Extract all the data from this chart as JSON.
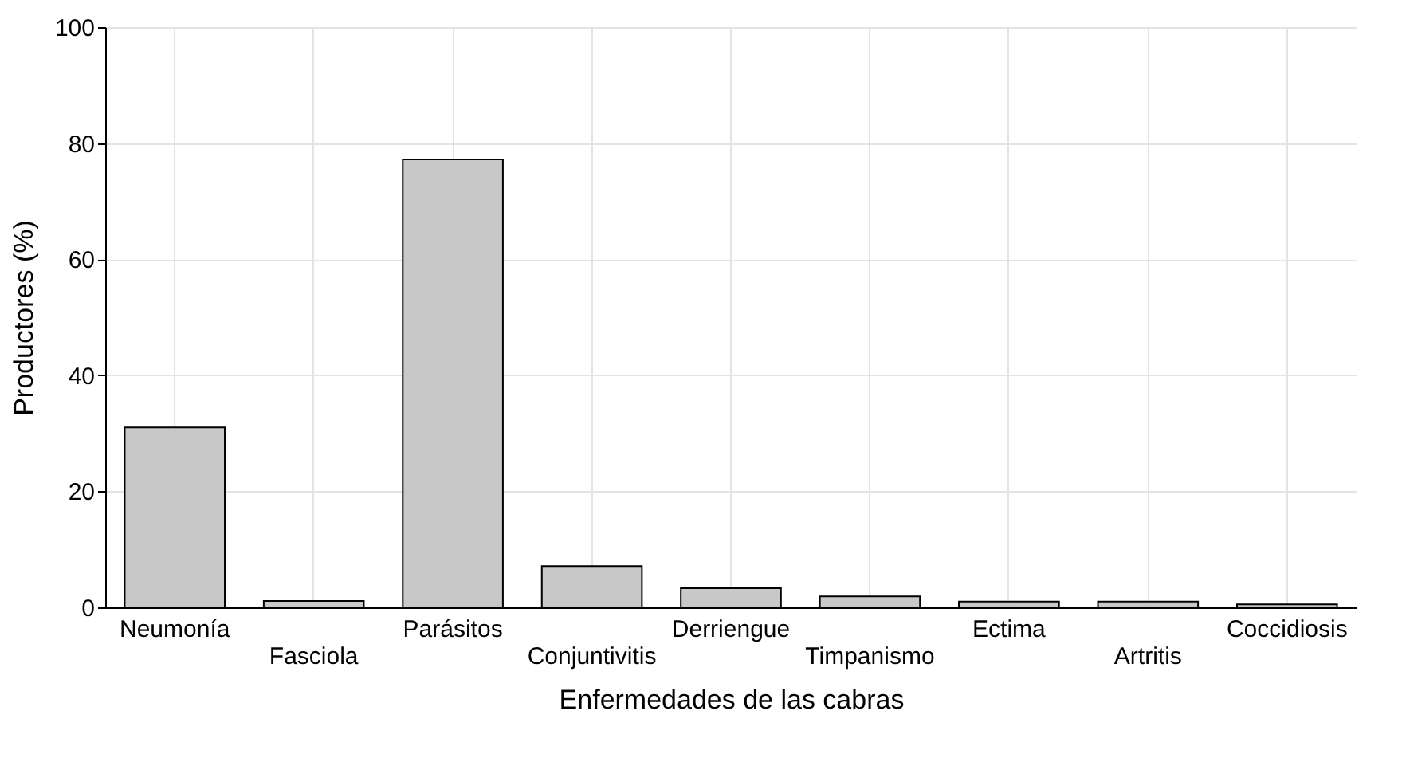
{
  "chart_data": {
    "type": "bar",
    "xlabel": "Enfermedades de las cabras",
    "ylabel": "Productores (%)",
    "categories": [
      "Neumonía",
      "Fasciola",
      "Parásitos",
      "Conjuntivitis",
      "Derriengue",
      "Timpanismo",
      "Ectima",
      "Artritis",
      "Coccidiosis"
    ],
    "values": [
      31,
      1.1,
      77.2,
      7.1,
      3.3,
      1.9,
      1,
      1,
      0.5
    ],
    "color": "#c8c8c8",
    "ylim": [
      0,
      100
    ],
    "yticks": [
      0,
      20,
      40,
      60,
      80,
      100
    ],
    "grid": true
  }
}
